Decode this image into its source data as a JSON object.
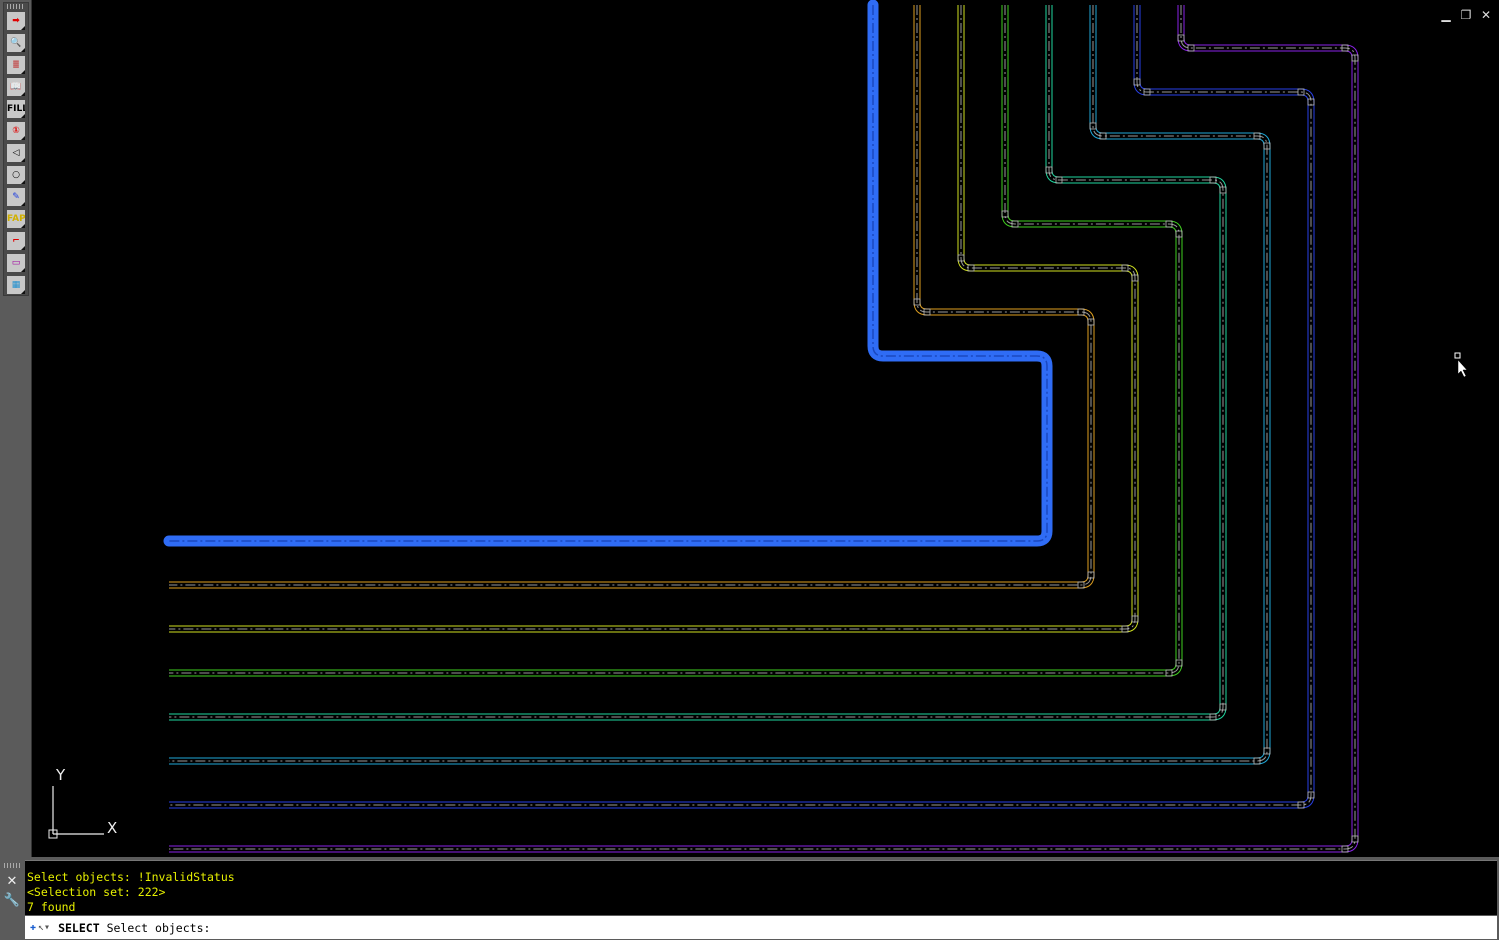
{
  "toolbar": {
    "tools": [
      {
        "icon": "red-arrow-icon",
        "glyph": "➡",
        "color": "#e00000"
      },
      {
        "icon": "zoom-magnifier-icon",
        "glyph": "🔍",
        "color": "#0050c0"
      },
      {
        "icon": "layers-stack-icon",
        "glyph": "≣",
        "color": "#c03030"
      },
      {
        "icon": "open-book-icon",
        "glyph": "📖",
        "color": "#3050c0"
      },
      {
        "icon": "fill-icon",
        "glyph": "FILL",
        "color": "#000000"
      },
      {
        "icon": "red-circle-one-icon",
        "glyph": "①",
        "color": "#e00000"
      },
      {
        "icon": "eye-view-icon",
        "glyph": "◁",
        "color": "#000000"
      },
      {
        "icon": "circle-lens-icon",
        "glyph": "○",
        "color": "#000000"
      },
      {
        "icon": "paint-palette-icon",
        "glyph": "✎",
        "color": "#2040e0"
      },
      {
        "icon": "fap-icon",
        "glyph": "FAP",
        "color": "#d0b000"
      },
      {
        "icon": "route-green-icon",
        "glyph": "⌐",
        "color": "#e00000"
      },
      {
        "icon": "monitor-panel-icon",
        "glyph": "▭",
        "color": "#a000a0"
      },
      {
        "icon": "building-icon",
        "glyph": "▦",
        "color": "#2090d0"
      }
    ]
  },
  "window_controls": {
    "minimize": "▁",
    "restore": "❐",
    "close": "✕"
  },
  "ucs": {
    "x_label": "X",
    "y_label": "Y"
  },
  "pipes": [
    {
      "color": "#2f6cf5",
      "selected": true
    },
    {
      "color": "#e0a020",
      "selected": false
    },
    {
      "color": "#cfe020",
      "selected": false
    },
    {
      "color": "#40d020",
      "selected": false
    },
    {
      "color": "#20d8a0",
      "selected": false
    },
    {
      "color": "#20a8d8",
      "selected": false
    },
    {
      "color": "#2840e8",
      "selected": false
    },
    {
      "color": "#8a22e8",
      "selected": false
    }
  ],
  "command": {
    "history": [
      "Select objects: !InvalidStatus",
      "<Selection set: 222>",
      "7 found"
    ],
    "prompt_command": "SELECT",
    "prompt_text": "Select objects:"
  }
}
